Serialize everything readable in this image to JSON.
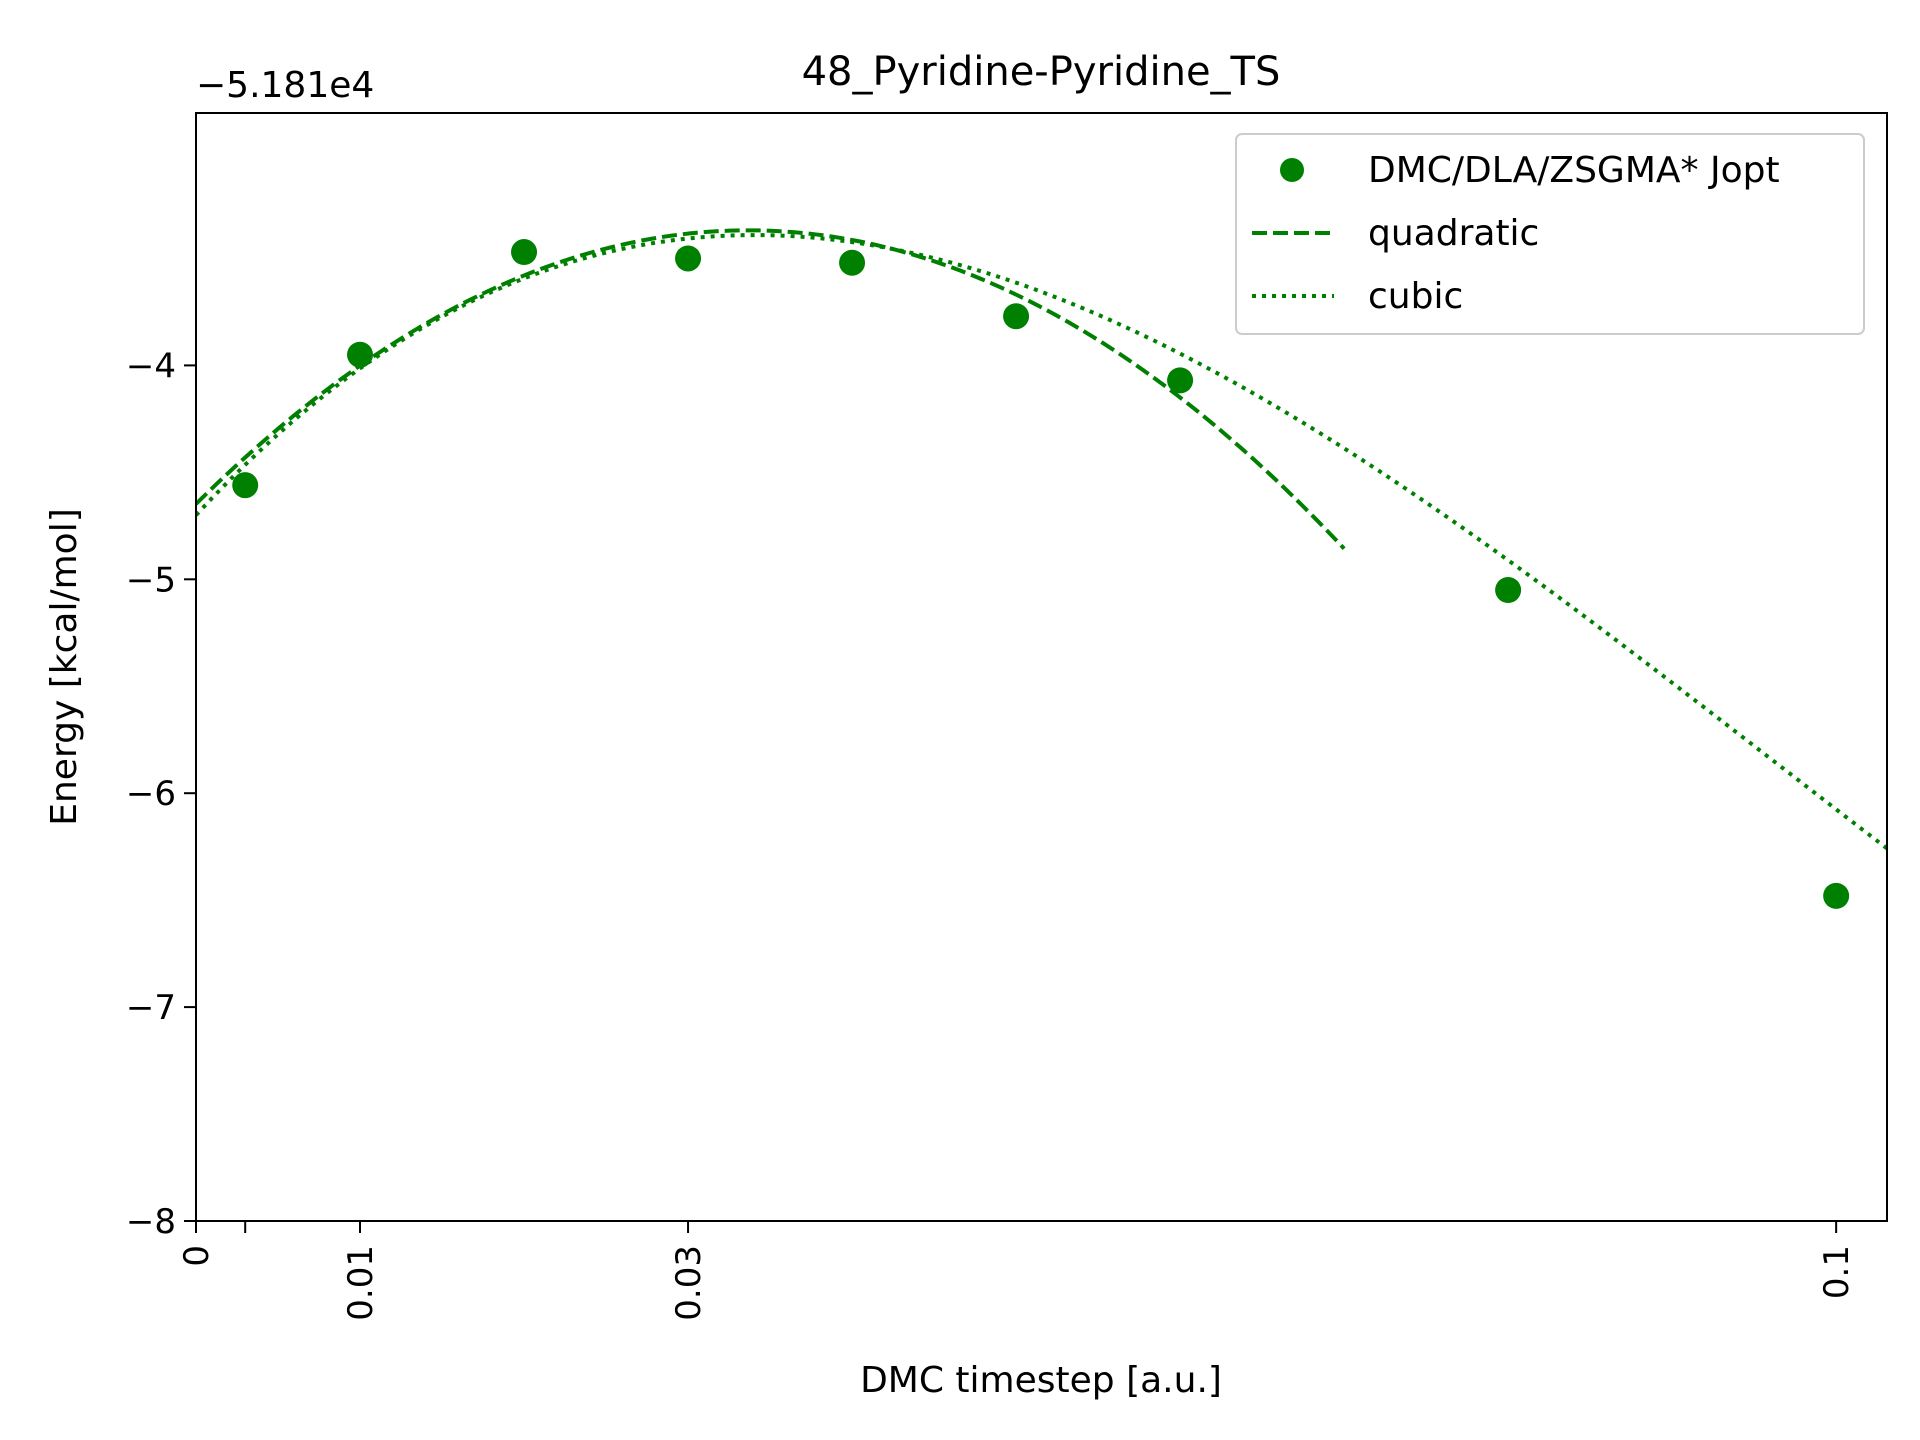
{
  "chart_data": {
    "type": "scatter",
    "title": "48_Pyridine-Pyridine_TS",
    "xlabel": "DMC timestep [a.u.]",
    "ylabel": "Energy [kcal/mol]",
    "y_offset_label": "−5.181e4",
    "xlim": [
      0,
      0.1031
    ],
    "ylim": [
      -8,
      -2.82
    ],
    "x_ticks": [
      {
        "value": 0,
        "label": "0"
      },
      {
        "value": 0.003,
        "label": ""
      },
      {
        "value": 0.01,
        "label": "0.01"
      },
      {
        "value": 0.03,
        "label": "0.03"
      },
      {
        "value": 0.1,
        "label": "0.1"
      }
    ],
    "y_ticks": [
      {
        "value": -4,
        "label": "−4"
      },
      {
        "value": -5,
        "label": "−5"
      },
      {
        "value": -6,
        "label": "−6"
      },
      {
        "value": -7,
        "label": "−7"
      },
      {
        "value": -8,
        "label": "−8"
      }
    ],
    "grid": false,
    "legend_position": "top-right",
    "color": "#008000",
    "series": [
      {
        "name": "DMC/DLA/ZSGMA* Jopt",
        "style": "markers",
        "x": [
          0.003,
          0.01,
          0.02,
          0.03,
          0.04,
          0.05,
          0.06,
          0.08,
          0.1
        ],
        "y": [
          -4.56,
          -3.95,
          -3.47,
          -3.5,
          -3.52,
          -3.77,
          -4.07,
          -5.05,
          -6.48
        ]
      },
      {
        "name": "quadratic",
        "style": "dashed",
        "fit": "quadratic",
        "coefficients": [
          -4.648,
          75.98,
          -1128
        ],
        "x_range": [
          0,
          0.07
        ]
      },
      {
        "name": "cubic",
        "style": "dotted",
        "fit": "cubic",
        "coefficients": [
          -4.7,
          82.87,
          -1479.1,
          5128.5
        ],
        "x_range": [
          0,
          0.1031
        ]
      }
    ]
  }
}
